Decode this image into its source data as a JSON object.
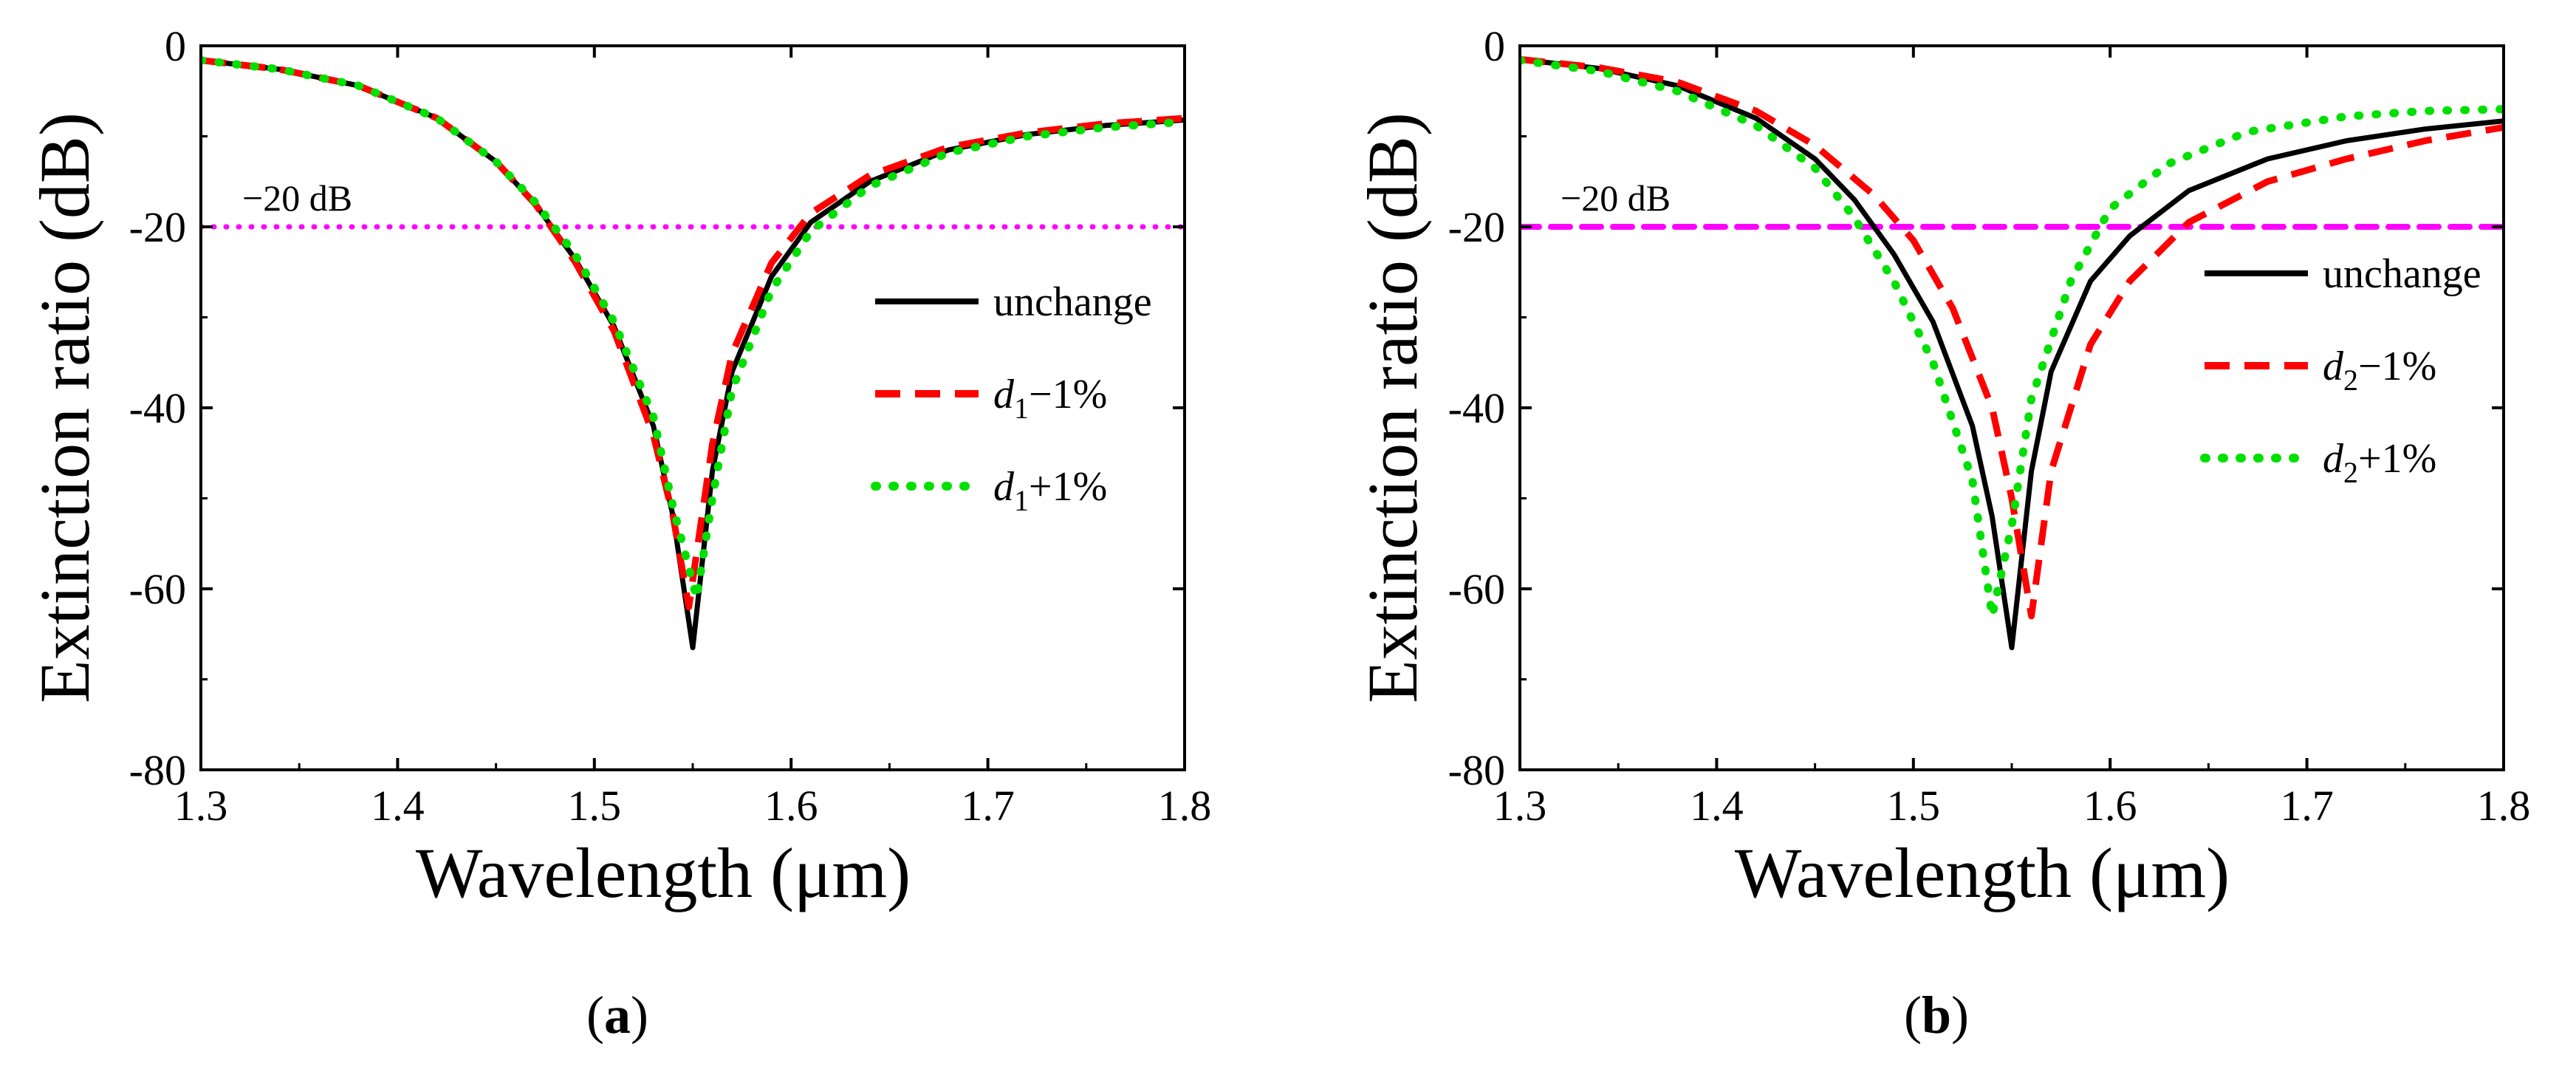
{
  "chart_data": [
    {
      "panel": "a",
      "type": "line",
      "xlabel": "Wavelength (μm)",
      "ylabel": "Extinction ratio (dB)",
      "xlim": [
        1.3,
        1.8
      ],
      "ylim": [
        -80,
        0
      ],
      "xticks": [
        "1.3",
        "1.4",
        "1.5",
        "1.6",
        "1.7",
        "1.8"
      ],
      "yticks": [
        "0",
        "-20",
        "-40",
        "-60",
        "-80"
      ],
      "reference_line": {
        "y": -20,
        "label": "−20 dB",
        "color": "#ff00ff",
        "style": "dotted"
      },
      "legend_position": "right",
      "series": [
        {
          "name": "unchange",
          "color": "#000000",
          "style": "solid",
          "label_html": [
            "unchange"
          ],
          "points": [
            [
              1.3,
              -1.6
            ],
            [
              1.34,
              -2.6
            ],
            [
              1.38,
              -4.4
            ],
            [
              1.42,
              -8.0
            ],
            [
              1.45,
              -12.8
            ],
            [
              1.47,
              -17.5
            ],
            [
              1.49,
              -23.5
            ],
            [
              1.51,
              -31.0
            ],
            [
              1.53,
              -42.0
            ],
            [
              1.54,
              -52.0
            ],
            [
              1.55,
              -66.5
            ],
            [
              1.56,
              -47.0
            ],
            [
              1.57,
              -36.0
            ],
            [
              1.59,
              -25.5
            ],
            [
              1.61,
              -19.5
            ],
            [
              1.64,
              -15.0
            ],
            [
              1.68,
              -11.5
            ],
            [
              1.72,
              -9.8
            ],
            [
              1.76,
              -8.8
            ],
            [
              1.8,
              -8.2
            ]
          ]
        },
        {
          "name": "d1−1%",
          "color": "#ff0000",
          "style": "dashed",
          "label_main": "d",
          "label_sub": "1",
          "label_tail": "−1%",
          "points": [
            [
              1.3,
              -1.6
            ],
            [
              1.34,
              -2.6
            ],
            [
              1.38,
              -4.4
            ],
            [
              1.42,
              -8.0
            ],
            [
              1.45,
              -12.8
            ],
            [
              1.47,
              -17.5
            ],
            [
              1.49,
              -23.8
            ],
            [
              1.51,
              -31.5
            ],
            [
              1.53,
              -43.0
            ],
            [
              1.54,
              -52.0
            ],
            [
              1.548,
              -62.0
            ],
            [
              1.56,
              -44.0
            ],
            [
              1.57,
              -34.0
            ],
            [
              1.59,
              -24.0
            ],
            [
              1.61,
              -18.5
            ],
            [
              1.64,
              -14.3
            ],
            [
              1.68,
              -11.2
            ],
            [
              1.72,
              -9.6
            ],
            [
              1.76,
              -8.6
            ],
            [
              1.8,
              -8.0
            ]
          ]
        },
        {
          "name": "d1+1%",
          "color": "#00e000",
          "style": "dotted",
          "label_main": "d",
          "label_sub": "1",
          "label_tail": "+1%",
          "points": [
            [
              1.3,
              -1.6
            ],
            [
              1.34,
              -2.6
            ],
            [
              1.38,
              -4.4
            ],
            [
              1.42,
              -8.0
            ],
            [
              1.45,
              -12.8
            ],
            [
              1.47,
              -17.3
            ],
            [
              1.49,
              -23.0
            ],
            [
              1.51,
              -30.5
            ],
            [
              1.53,
              -41.0
            ],
            [
              1.54,
              -51.0
            ],
            [
              1.552,
              -61.0
            ],
            [
              1.56,
              -50.0
            ],
            [
              1.57,
              -38.0
            ],
            [
              1.59,
              -27.0
            ],
            [
              1.61,
              -20.5
            ],
            [
              1.64,
              -15.5
            ],
            [
              1.68,
              -11.8
            ],
            [
              1.72,
              -10.0
            ],
            [
              1.76,
              -9.0
            ],
            [
              1.8,
              -8.4
            ]
          ]
        }
      ],
      "caption": "a"
    },
    {
      "panel": "b",
      "type": "line",
      "xlabel": "Wavelength (μm)",
      "ylabel": "Extinction ratio (dB)",
      "xlim": [
        1.3,
        1.8
      ],
      "ylim": [
        -80,
        0
      ],
      "xticks": [
        "1.3",
        "1.4",
        "1.5",
        "1.6",
        "1.7",
        "1.8"
      ],
      "yticks": [
        "0",
        "-20",
        "-40",
        "-60",
        "-80"
      ],
      "reference_line": {
        "y": -20,
        "label": "−20 dB",
        "color": "#ff00ff",
        "style": "dashed"
      },
      "legend_position": "right",
      "series": [
        {
          "name": "unchange",
          "color": "#000000",
          "style": "solid",
          "points": [
            [
              1.3,
              -1.5
            ],
            [
              1.34,
              -2.5
            ],
            [
              1.38,
              -4.4
            ],
            [
              1.42,
              -8.0
            ],
            [
              1.45,
              -12.5
            ],
            [
              1.47,
              -17.0
            ],
            [
              1.49,
              -23.0
            ],
            [
              1.51,
              -30.5
            ],
            [
              1.53,
              -42.0
            ],
            [
              1.54,
              -52.0
            ],
            [
              1.55,
              -66.5
            ],
            [
              1.56,
              -47.0
            ],
            [
              1.57,
              -36.0
            ],
            [
              1.59,
              -26.0
            ],
            [
              1.61,
              -21.0
            ],
            [
              1.64,
              -16.0
            ],
            [
              1.68,
              -12.5
            ],
            [
              1.72,
              -10.5
            ],
            [
              1.76,
              -9.2
            ],
            [
              1.8,
              -8.3
            ]
          ]
        },
        {
          "name": "d2−1%",
          "color": "#ff0000",
          "style": "dashed",
          "label_main": "d",
          "label_sub": "2",
          "label_tail": "−1%",
          "points": [
            [
              1.3,
              -1.5
            ],
            [
              1.34,
              -2.4
            ],
            [
              1.38,
              -4.0
            ],
            [
              1.42,
              -7.2
            ],
            [
              1.45,
              -11.0
            ],
            [
              1.48,
              -16.5
            ],
            [
              1.5,
              -21.5
            ],
            [
              1.52,
              -29.0
            ],
            [
              1.54,
              -40.0
            ],
            [
              1.55,
              -50.0
            ],
            [
              1.56,
              -63.0
            ],
            [
              1.57,
              -47.0
            ],
            [
              1.59,
              -33.0
            ],
            [
              1.61,
              -26.0
            ],
            [
              1.64,
              -19.5
            ],
            [
              1.68,
              -15.0
            ],
            [
              1.72,
              -12.5
            ],
            [
              1.76,
              -10.5
            ],
            [
              1.8,
              -9.0
            ]
          ]
        },
        {
          "name": "d2+1%",
          "color": "#00e000",
          "style": "dotted",
          "label_main": "d",
          "label_sub": "2",
          "label_tail": "+1%",
          "points": [
            [
              1.3,
              -1.6
            ],
            [
              1.34,
              -2.8
            ],
            [
              1.38,
              -5.0
            ],
            [
              1.42,
              -8.8
            ],
            [
              1.45,
              -13.5
            ],
            [
              1.47,
              -19.0
            ],
            [
              1.49,
              -26.0
            ],
            [
              1.51,
              -35.0
            ],
            [
              1.53,
              -48.0
            ],
            [
              1.54,
              -63.0
            ],
            [
              1.55,
              -53.0
            ],
            [
              1.56,
              -39.0
            ],
            [
              1.58,
              -26.0
            ],
            [
              1.6,
              -18.0
            ],
            [
              1.63,
              -13.0
            ],
            [
              1.67,
              -9.5
            ],
            [
              1.72,
              -7.8
            ],
            [
              1.76,
              -7.2
            ],
            [
              1.8,
              -7.0
            ]
          ]
        }
      ],
      "caption": "b"
    }
  ]
}
